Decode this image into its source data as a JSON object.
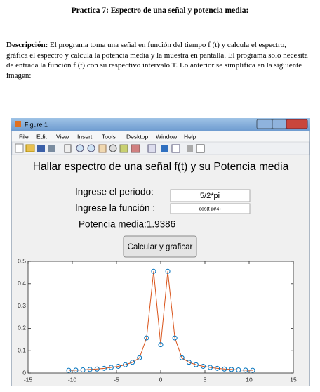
{
  "document": {
    "title": "Practica 7: Espectro de una señal y potencia media:",
    "description_label": "Descripción:",
    "description": "El programa toma una señal en función del tiempo f (t) y calcula el espectro, gráfica el espectro y calcula la potencia media y la muestra en pantalla. El programa solo necesita de entrada la función f (t) con su respectivo intervalo T. Lo anterior se simplifica en la siguiente imagen:"
  },
  "window": {
    "title": "Figure 1",
    "menu": [
      "File",
      "Edit",
      "View",
      "Insert",
      "Tools",
      "Desktop",
      "Window",
      "Help"
    ],
    "gui_title": "Hallar espectro de una señal f(t) y su Potencia media",
    "period_label": "Ingrese el periodo:",
    "period_value": "5/2*pi",
    "function_label": "Ingrese la función :",
    "function_value": "cos(t-pi/4)",
    "power": "Potencia media:1.9386",
    "button": "Calcular y graficar"
  },
  "chart_data": {
    "type": "line",
    "x": [
      -10.4,
      -9.6,
      -8.8,
      -8,
      -7.2,
      -6.4,
      -5.6,
      -4.8,
      -4,
      -3.2,
      -2.4,
      -1.6,
      -0.8,
      0,
      0.8,
      1.6,
      2.4,
      3.2,
      4,
      4.8,
      5.6,
      6.4,
      7.2,
      8,
      8.8,
      9.6,
      10.4
    ],
    "series": [
      {
        "color": "#d95319",
        "marker_color": "#0072bd",
        "values": [
          0.012,
          0.013,
          0.014,
          0.016,
          0.018,
          0.021,
          0.025,
          0.03,
          0.037,
          0.048,
          0.068,
          0.157,
          0.455,
          0.127,
          0.455,
          0.157,
          0.068,
          0.048,
          0.037,
          0.03,
          0.025,
          0.021,
          0.018,
          0.016,
          0.014,
          0.013,
          0.012
        ]
      }
    ],
    "xlim": [
      -15,
      15
    ],
    "ylim": [
      0,
      0.5
    ],
    "xticks": [
      -15,
      -10,
      -5,
      0,
      5,
      10,
      15
    ],
    "yticks": [
      0,
      0.1,
      0.2,
      0.3,
      0.4,
      0.5
    ]
  }
}
